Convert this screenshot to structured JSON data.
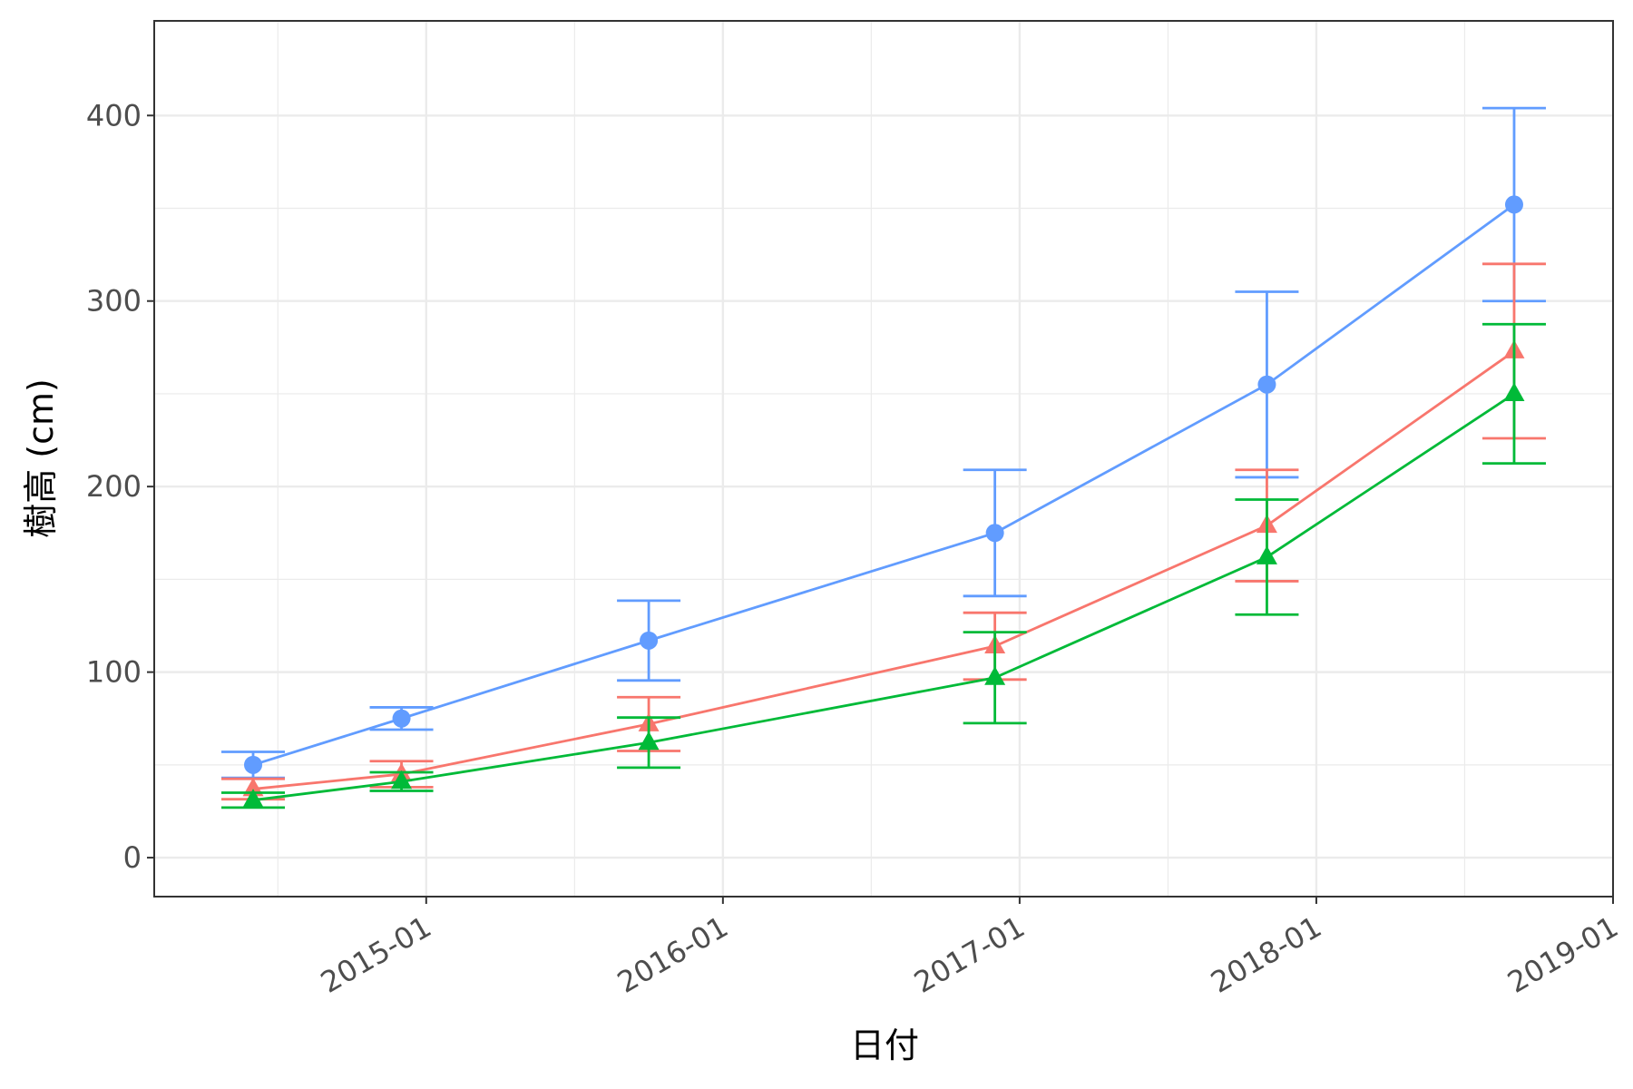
{
  "chart_data": {
    "type": "line",
    "x_label": "日付",
    "y_label": "樹高 (cm)",
    "x": [
      "2014-06",
      "2014-12",
      "2015-10",
      "2016-12",
      "2017-11",
      "2018-09"
    ],
    "xlim": [
      "2014-02",
      "2019-01"
    ],
    "xticks": [
      "2015-01",
      "2016-01",
      "2017-01",
      "2018-01",
      "2019-01"
    ],
    "ylim": [
      -21,
      451
    ],
    "yticks": [
      0,
      100,
      200,
      300,
      400
    ],
    "grid": true,
    "series": [
      {
        "color": "#619CFF",
        "marker": "circle",
        "values": [
          50,
          75,
          117,
          175,
          255,
          352
        ],
        "errors": [
          7,
          6,
          21.5,
          34,
          50,
          52
        ]
      },
      {
        "color": "#F8766D",
        "marker": "triangle",
        "values": [
          37,
          45,
          72,
          114,
          179,
          273
        ],
        "errors": [
          5.5,
          7,
          14.5,
          18,
          30,
          47
        ]
      },
      {
        "color": "#00BA38",
        "marker": "triangle",
        "values": [
          31,
          41,
          62,
          97,
          162,
          250
        ],
        "errors": [
          4,
          5,
          13.5,
          24.5,
          31,
          37.5
        ]
      }
    ]
  }
}
